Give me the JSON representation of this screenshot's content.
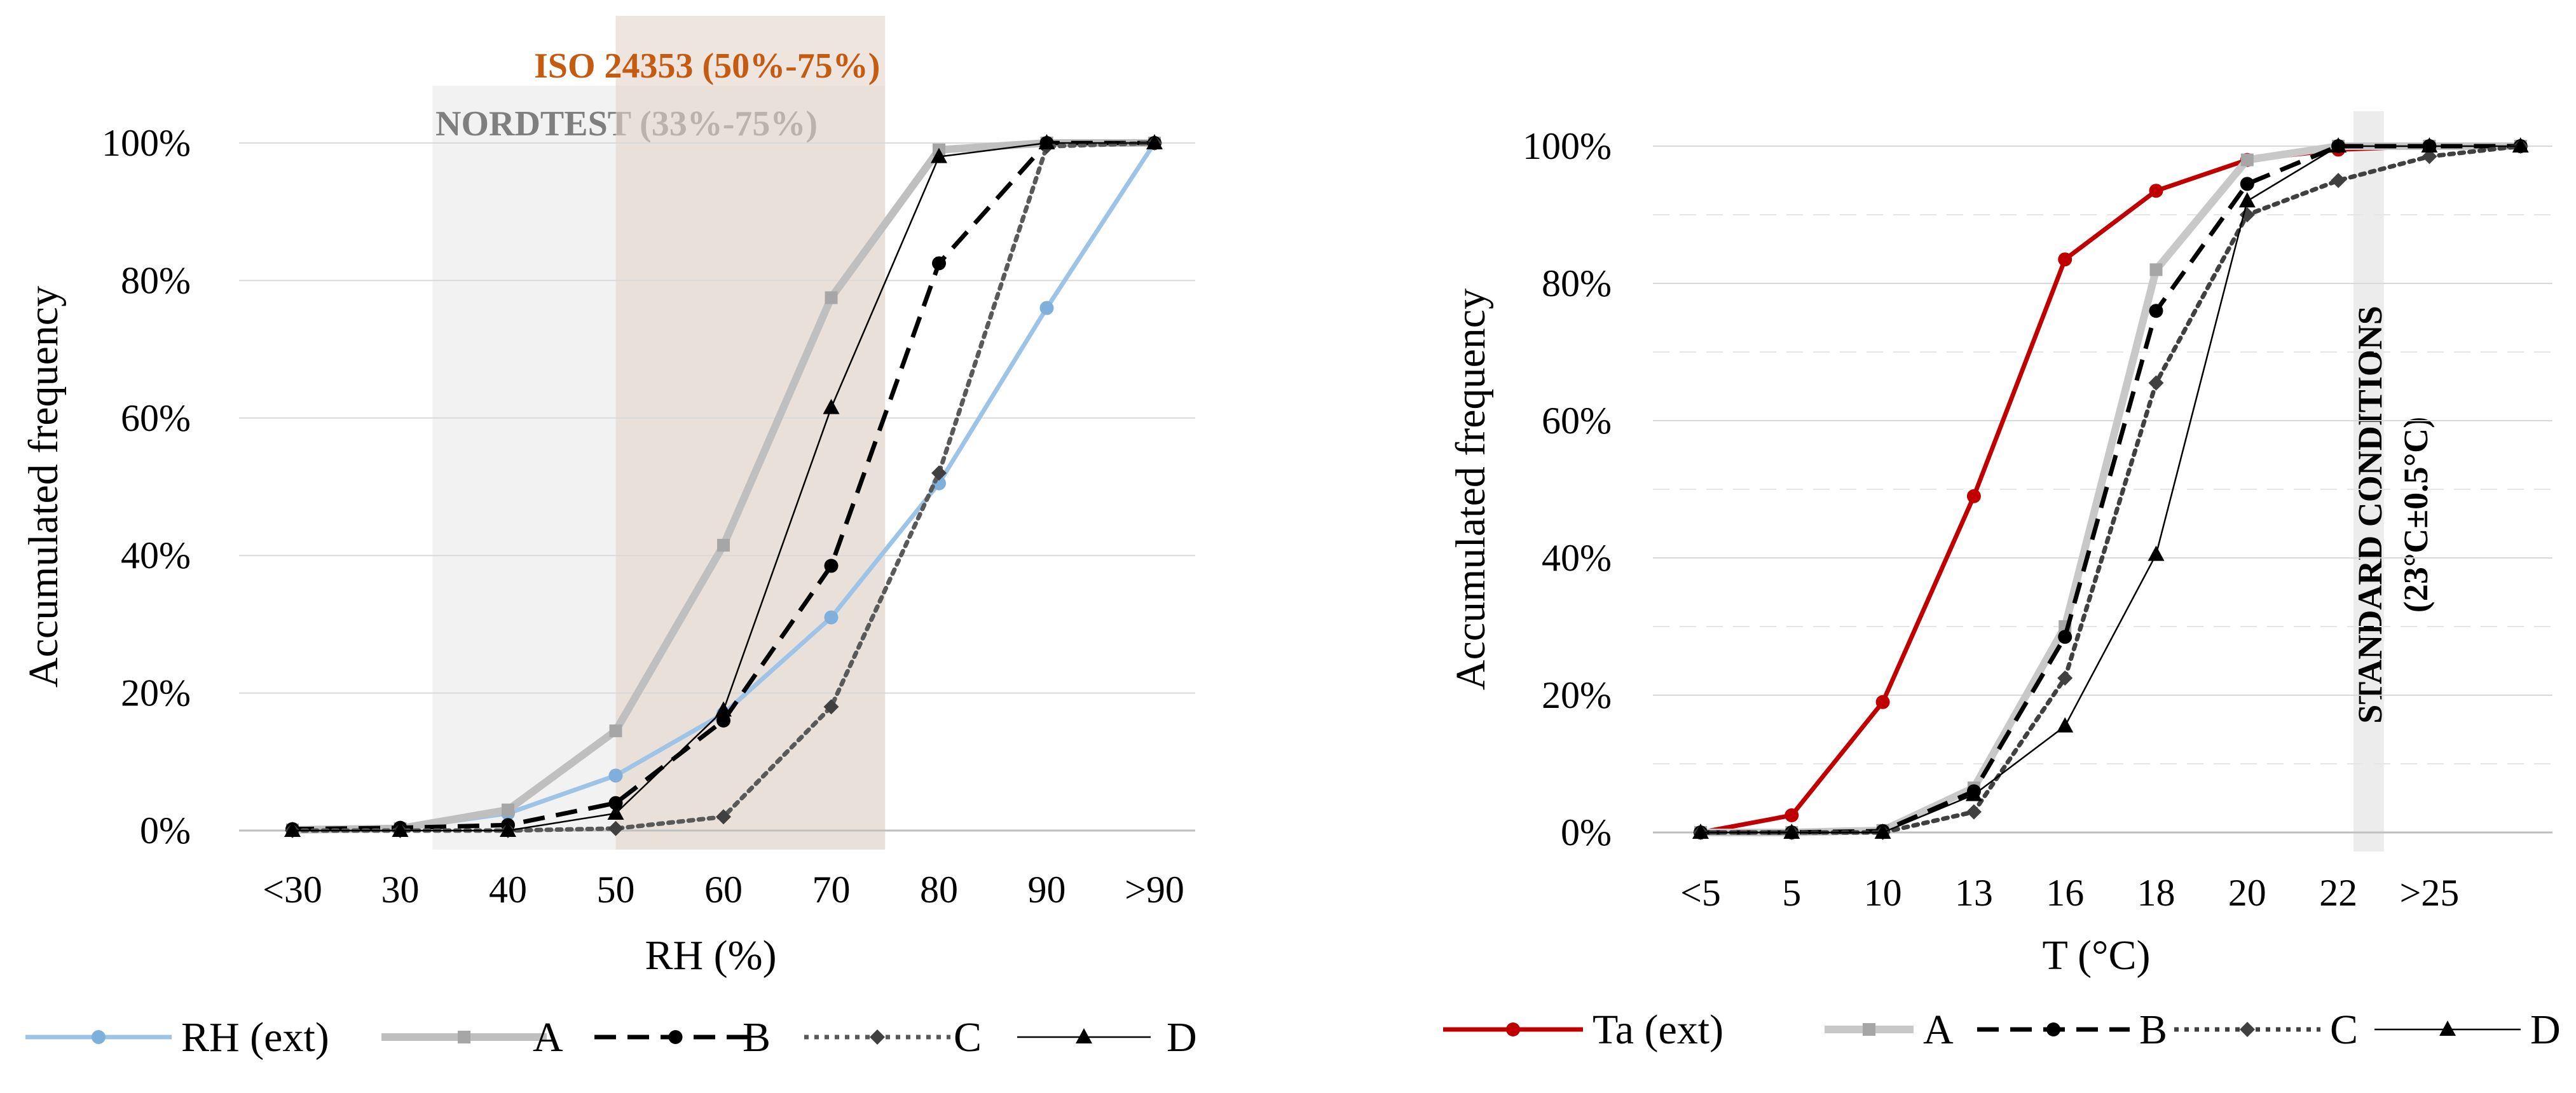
{
  "chart_data": [
    {
      "type": "line",
      "id": "rh",
      "categories": [
        "<30",
        "30",
        "40",
        "50",
        "60",
        "70",
        "80",
        "90",
        ">90"
      ],
      "xlabel": "RH (%)",
      "ylabel": "Accumulated frequency",
      "ylim": [
        0,
        100
      ],
      "yticks": [
        "0%",
        "20%",
        "40%",
        "60%",
        "80%",
        "100%"
      ],
      "grid": true,
      "legend": "bottom",
      "bands": [
        {
          "name": "NORDTEST (33%-75%)",
          "label": "NORDTEST (33%-75%)",
          "from": 33,
          "to": 75,
          "fill": "#e7e7e7",
          "text_color": "#7f7f7f"
        },
        {
          "name": "ISO 24353 (50%-75%)",
          "label": "ISO 24353 (50%-75%)",
          "from": 50,
          "to": 75,
          "fill": "#e2d4c8",
          "text_color": "#c55a11"
        }
      ],
      "series": [
        {
          "name": "RH (ext)",
          "color": "#9dc3e6",
          "style": "solid",
          "width": "medium",
          "marker": "circle",
          "values": [
            0.2,
            0.3,
            2.5,
            8,
            17,
            31,
            50.5,
            76,
            100
          ]
        },
        {
          "name": "A",
          "color": "#bfbfbf",
          "style": "solid",
          "width": "thick",
          "marker": "square",
          "values": [
            0.1,
            0.3,
            3,
            14.5,
            41.5,
            77.5,
            99,
            100,
            100
          ]
        },
        {
          "name": "B",
          "color": "#000000",
          "style": "dashed",
          "width": "medium",
          "marker": "circle",
          "values": [
            0.2,
            0.4,
            0.8,
            4,
            16,
            38.5,
            82.5,
            100,
            100
          ]
        },
        {
          "name": "C",
          "color": "#595959",
          "style": "dotted",
          "width": "medium",
          "marker": "diamond",
          "values": [
            0,
            0,
            0,
            0.3,
            2,
            18,
            52,
            99.5,
            100
          ]
        },
        {
          "name": "D",
          "color": "#000000",
          "style": "solid",
          "width": "thin",
          "marker": "triangle",
          "values": [
            0,
            0,
            0,
            2.5,
            17.5,
            61.5,
            98,
            100,
            100
          ]
        }
      ]
    },
    {
      "type": "line",
      "id": "temp",
      "categories": [
        "<5",
        "5",
        "10",
        "13",
        "16",
        "18",
        "20",
        "22",
        ">25",
        ""
      ],
      "xlabel": "T (°C)",
      "ylabel": "Accumulated frequency",
      "ylim": [
        0,
        100
      ],
      "yticks": [
        "0%",
        "20%",
        "40%",
        "60%",
        "80%",
        "100%"
      ],
      "grid": true,
      "legend": "bottom",
      "bands": [
        {
          "name": "STANDARD CONDITIONS",
          "label": "STANDARD CONDITIONS",
          "label2": "(23°C±0.5°C)",
          "from": 22.5,
          "to": 23.5,
          "fill": "#e7e7e7"
        }
      ],
      "series": [
        {
          "name": "Ta (ext)",
          "color": "#c00000",
          "style": "solid",
          "width": "medium",
          "marker": "circle",
          "values": [
            0,
            2.5,
            19,
            49,
            83.5,
            93.5,
            98,
            99.5,
            100,
            100
          ]
        },
        {
          "name": "A",
          "color": "#c8c8c8",
          "style": "solid",
          "width": "thick",
          "marker": "square",
          "values": [
            0,
            0,
            0.3,
            6.5,
            30,
            82,
            98,
            100,
            100,
            100
          ]
        },
        {
          "name": "B",
          "color": "#000000",
          "style": "dashed",
          "width": "medium",
          "marker": "circle",
          "values": [
            0,
            0,
            0.2,
            6,
            28.5,
            76,
            94.5,
            100,
            100,
            100
          ]
        },
        {
          "name": "C",
          "color": "#404040",
          "style": "dotted",
          "width": "medium",
          "marker": "diamond",
          "values": [
            0,
            0,
            0,
            3,
            22.5,
            65.5,
            90,
            95,
            98.5,
            100
          ]
        },
        {
          "name": "D",
          "color": "#000000",
          "style": "solid",
          "width": "thin",
          "marker": "triangle",
          "values": [
            0,
            0,
            0,
            5.5,
            15.5,
            40.5,
            92,
            100,
            100,
            100
          ]
        }
      ]
    }
  ]
}
